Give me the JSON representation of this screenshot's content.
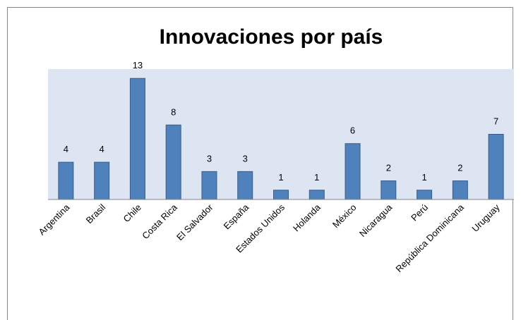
{
  "chart_data": {
    "type": "bar",
    "title": "Innovaciones por país",
    "categories": [
      "Argentina",
      "Brasil",
      "Chile",
      "Costa Rica",
      "El Salvador",
      "España",
      "Estados Unidos",
      "Holanda",
      "México",
      "Nicaragua",
      "Perú",
      "República Dominicana",
      "Uruguay"
    ],
    "values": [
      4,
      4,
      13,
      8,
      3,
      3,
      1,
      1,
      6,
      2,
      1,
      2,
      7
    ],
    "color": "#4f81bd",
    "ylim": [
      0,
      14
    ]
  }
}
